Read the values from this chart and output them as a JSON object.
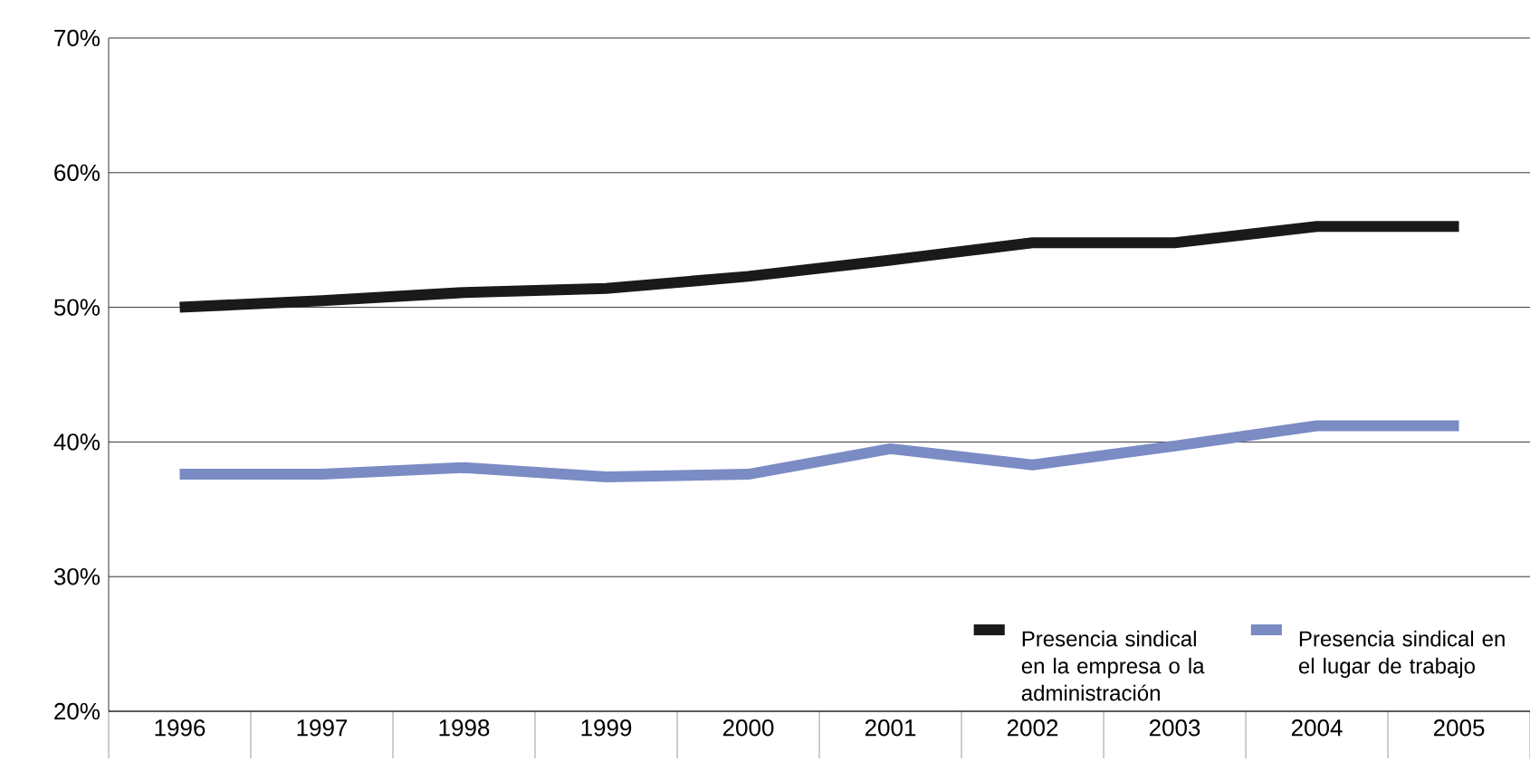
{
  "chart_data": {
    "type": "line",
    "categories": [
      "1996",
      "1997",
      "1998",
      "1999",
      "2000",
      "2001",
      "2002",
      "2003",
      "2004",
      "2005"
    ],
    "series": [
      {
        "name": "Presencia sindical en la empresa o la administración",
        "color": "#1a1a1a",
        "values": [
          50.0,
          50.5,
          51.1,
          51.4,
          52.3,
          53.5,
          54.8,
          54.8,
          56.0,
          56.0
        ]
      },
      {
        "name": "Presencia sindical en el lugar de trabajo",
        "color": "#7b8bc4",
        "values": [
          37.6,
          37.6,
          38.1,
          37.4,
          37.6,
          39.5,
          38.3,
          39.7,
          41.2,
          41.2
        ]
      }
    ],
    "ylim": [
      20,
      70
    ],
    "yticks": [
      {
        "value": 20,
        "label": "20%"
      },
      {
        "value": 30,
        "label": "30%"
      },
      {
        "value": 40,
        "label": "40%"
      },
      {
        "value": 50,
        "label": "50%"
      },
      {
        "value": 60,
        "label": "60%"
      },
      {
        "value": 70,
        "label": "70%"
      }
    ],
    "grid": "y",
    "legend": "bottom right",
    "marker": "none",
    "line_style": "solid"
  }
}
